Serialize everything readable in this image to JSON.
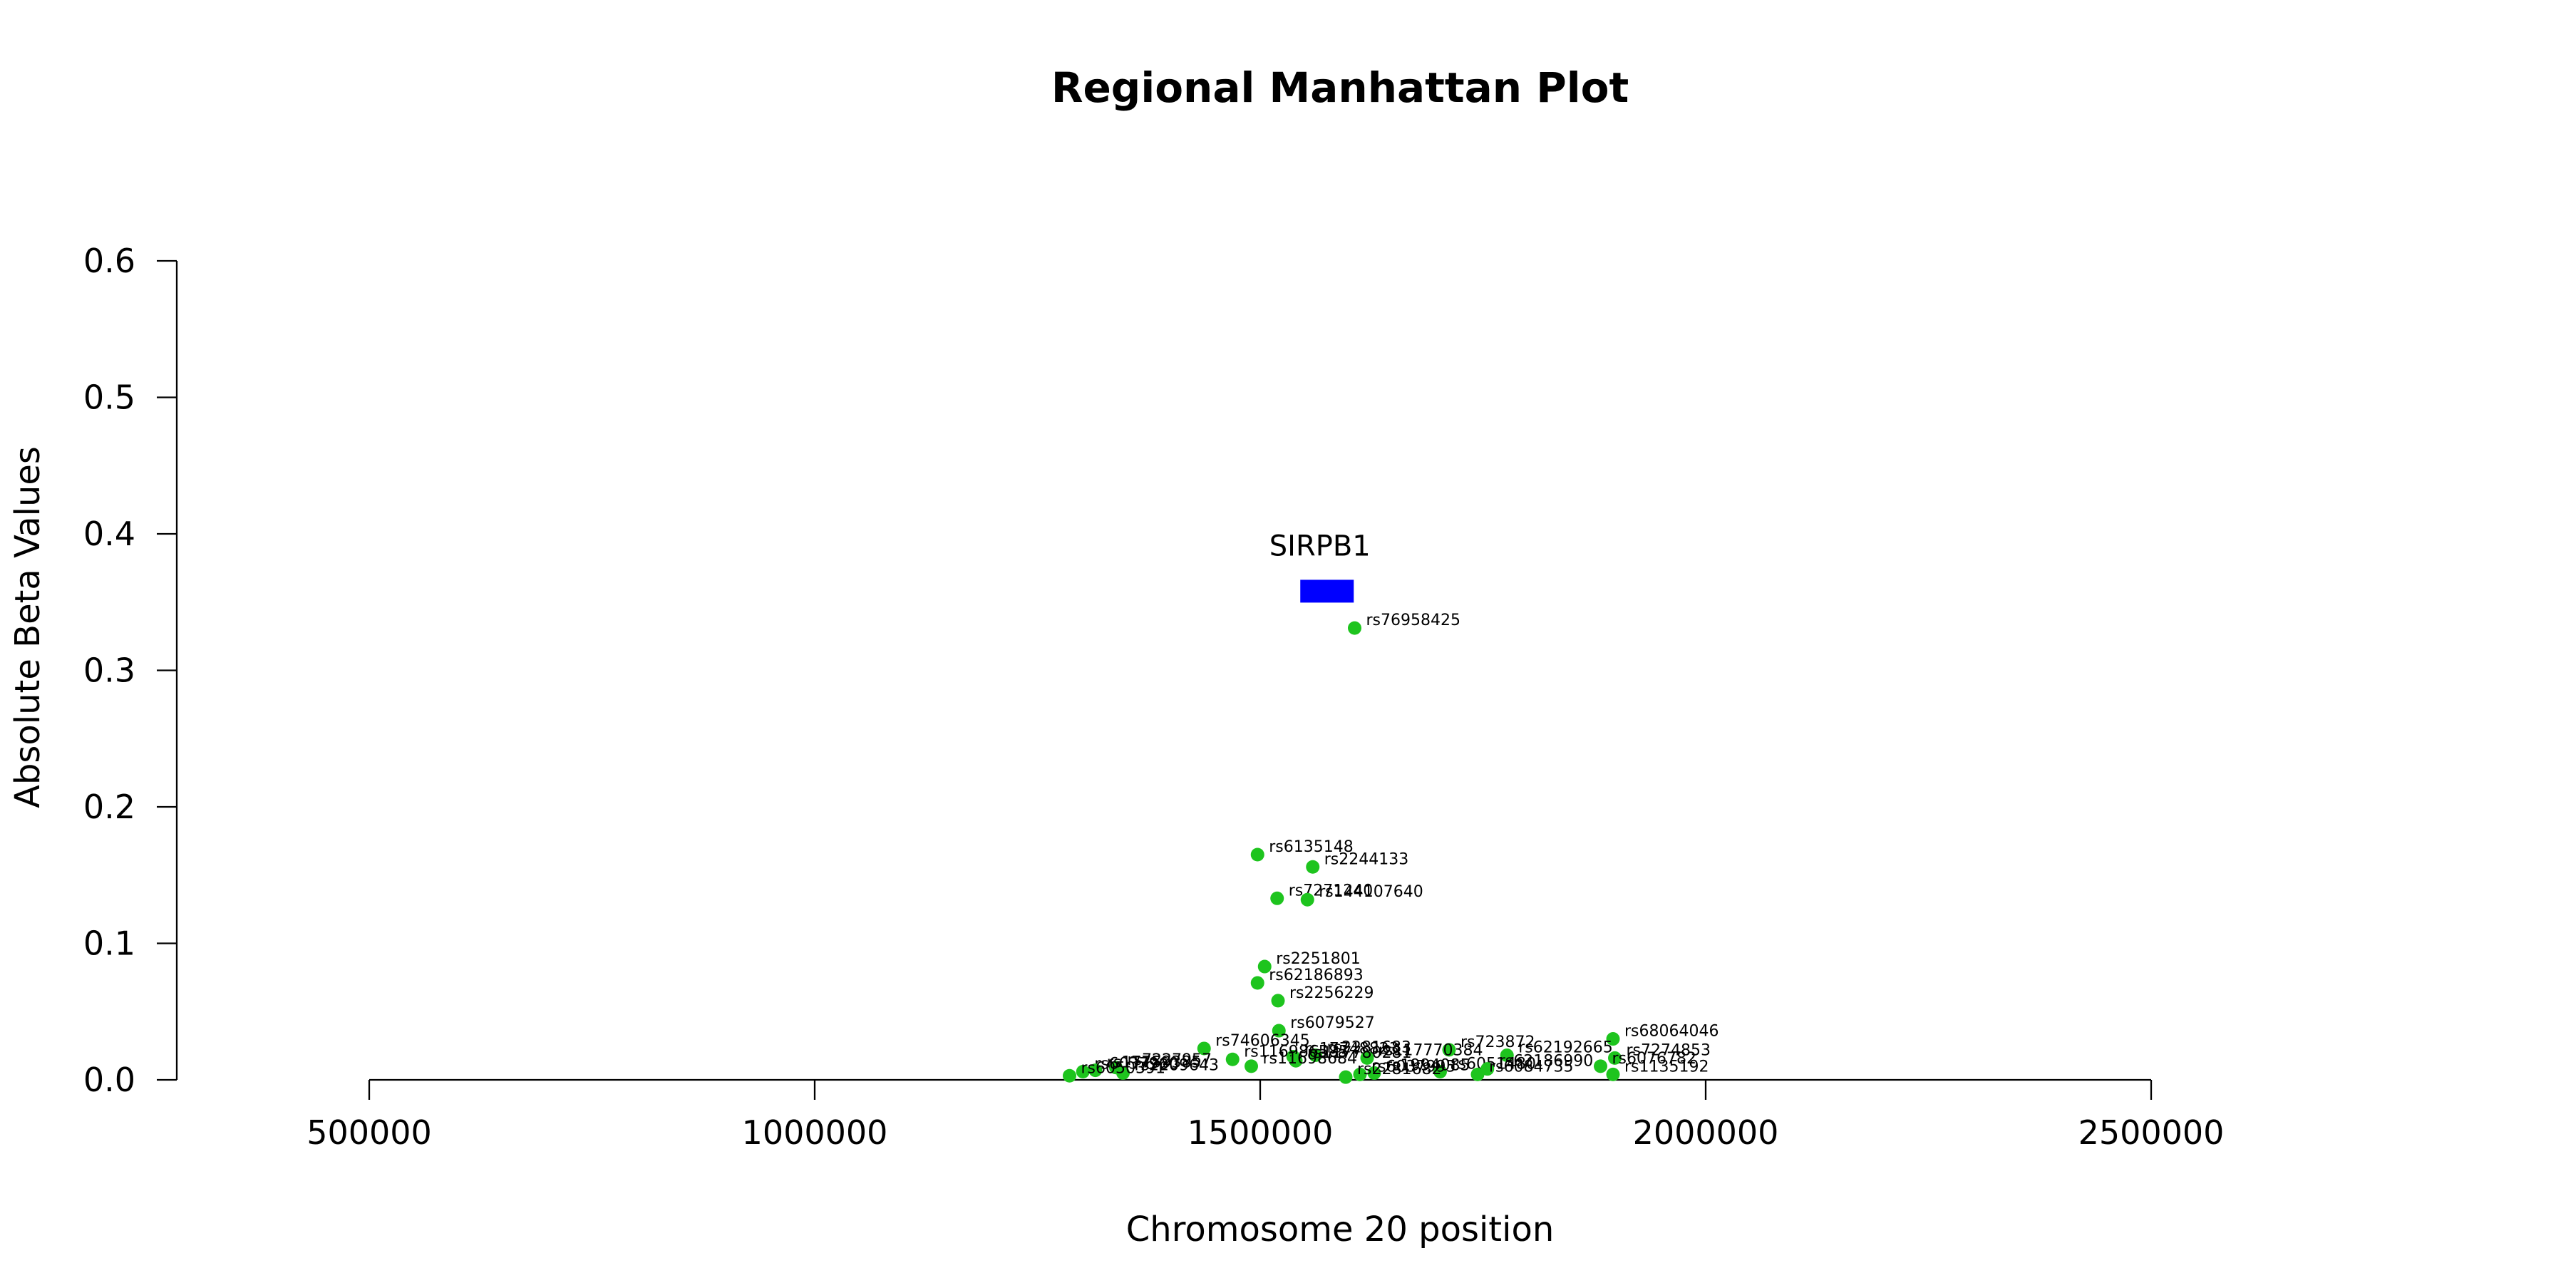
{
  "chart_data": {
    "type": "scatter",
    "title": "Regional Manhattan Plot",
    "xlabel": "Chromosome 20 position",
    "ylabel": "Absolute Beta Values",
    "xlim": [
      500000,
      2500000
    ],
    "ylim": [
      0,
      0.6
    ],
    "xticks": [
      "500000",
      "1000000",
      "1500000",
      "2000000",
      "2500000"
    ],
    "xtick_values": [
      500000,
      1000000,
      1500000,
      2000000,
      2500000
    ],
    "yticks": [
      "0.0",
      "0.1",
      "0.2",
      "0.3",
      "0.4",
      "0.5",
      "0.6"
    ],
    "ytick_values": [
      0.0,
      0.1,
      0.2,
      0.3,
      0.4,
      0.5,
      0.6
    ],
    "point_color": "#1ec41e",
    "gene": {
      "name": "SIRPB1",
      "start": 1545000,
      "end": 1605000,
      "y": 0.358,
      "color": "#0000ff"
    },
    "points": [
      {
        "label": "rs76958425",
        "x": 1606000,
        "y": 0.331
      },
      {
        "label": "rs6135148",
        "x": 1497000,
        "y": 0.165
      },
      {
        "label": "rs2244133",
        "x": 1559000,
        "y": 0.156
      },
      {
        "label": "rs7271240",
        "x": 1519000,
        "y": 0.133
      },
      {
        "label": "rs144107640",
        "x": 1553000,
        "y": 0.132
      },
      {
        "label": "rs2251801",
        "x": 1505000,
        "y": 0.083
      },
      {
        "label": "rs62186893",
        "x": 1497000,
        "y": 0.071
      },
      {
        "label": "rs2256229",
        "x": 1520000,
        "y": 0.058
      },
      {
        "label": "rs6079527",
        "x": 1521000,
        "y": 0.036
      },
      {
        "label": "rs74606345",
        "x": 1437000,
        "y": 0.023
      },
      {
        "label": "rs68064046",
        "x": 1896000,
        "y": 0.03
      },
      {
        "label": "rs723872",
        "x": 1712000,
        "y": 0.022
      },
      {
        "label": "rs62192665",
        "x": 1777000,
        "y": 0.018
      },
      {
        "label": "rs17748823",
        "x": 1537000,
        "y": 0.017
      },
      {
        "label": "rs2281683",
        "x": 1562000,
        "y": 0.018
      },
      {
        "label": "rs117770384",
        "x": 1620000,
        "y": 0.016
      },
      {
        "label": "rs116986585",
        "x": 1469000,
        "y": 0.015
      },
      {
        "label": "rs117780281",
        "x": 1540000,
        "y": 0.014
      },
      {
        "label": "rs7274853",
        "x": 1898000,
        "y": 0.016
      },
      {
        "label": "rs11698684",
        "x": 1490000,
        "y": 0.01
      },
      {
        "label": "rs7227957",
        "x": 1338000,
        "y": 0.009
      },
      {
        "label": "rs6076782",
        "x": 1882000,
        "y": 0.01
      },
      {
        "label": "rs6037960",
        "x": 1301000,
        "y": 0.006
      },
      {
        "label": "rs2209643",
        "x": 1346000,
        "y": 0.005
      },
      {
        "label": "rs17759385",
        "x": 1315000,
        "y": 0.007
      },
      {
        "label": "rs6051480",
        "x": 1702000,
        "y": 0.006
      },
      {
        "label": "rs62186990",
        "x": 1755000,
        "y": 0.008
      },
      {
        "label": "rs1135192",
        "x": 1896000,
        "y": 0.004
      },
      {
        "label": "rs6084735",
        "x": 1744000,
        "y": 0.004
      },
      {
        "label": "rs1994085",
        "x": 1628000,
        "y": 0.005
      },
      {
        "label": "rs6037995",
        "x": 1612000,
        "y": 0.004
      },
      {
        "label": "rs2281682",
        "x": 1596000,
        "y": 0.002
      },
      {
        "label": "rs6050391",
        "x": 1286000,
        "y": 0.003
      }
    ]
  }
}
